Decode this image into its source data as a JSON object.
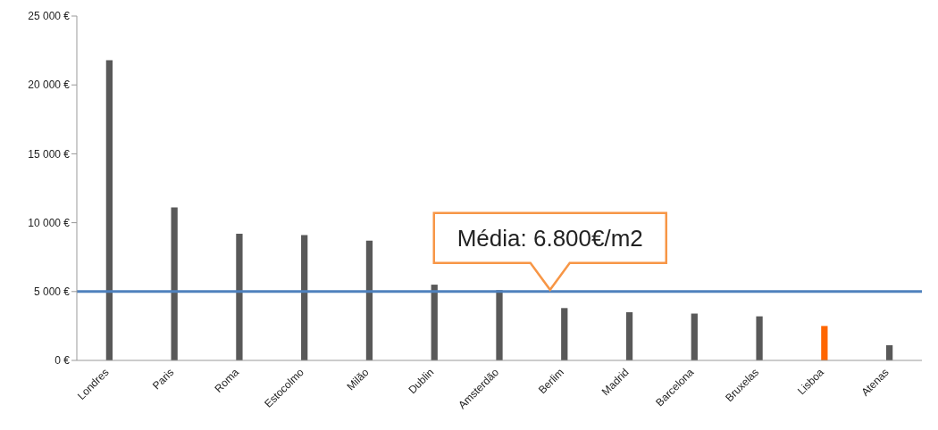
{
  "chart_data": {
    "type": "bar",
    "categories": [
      "Londres",
      "Paris",
      "Roma",
      "Estocolmo",
      "Milão",
      "Dublin",
      "Amsterdão",
      "Berlim",
      "Madrid",
      "Barcelona",
      "Bruxelas",
      "Lisboa",
      "Atenas"
    ],
    "values": [
      21800,
      11100,
      9200,
      9100,
      8700,
      5500,
      5100,
      3800,
      3500,
      3400,
      3200,
      2500,
      1100
    ],
    "colors": [
      "#595959",
      "#595959",
      "#595959",
      "#595959",
      "#595959",
      "#595959",
      "#595959",
      "#595959",
      "#595959",
      "#595959",
      "#595959",
      "#ff6600",
      "#595959"
    ],
    "ylim": [
      0,
      25000
    ],
    "yticks": [
      {
        "value": 0,
        "label": "0 €"
      },
      {
        "value": 5000,
        "label": "5 000 €"
      },
      {
        "value": 10000,
        "label": "10 000 €"
      },
      {
        "value": 15000,
        "label": "15 000 €"
      },
      {
        "value": 20000,
        "label": "20 000 €"
      },
      {
        "value": 25000,
        "label": "25 000 €"
      }
    ],
    "ref_lines": [
      {
        "axis": "y",
        "value": 5000,
        "color": "#4f81bd"
      }
    ],
    "annotations": [
      "Média: 6.800€/m2"
    ],
    "grid": false,
    "legend": false
  }
}
